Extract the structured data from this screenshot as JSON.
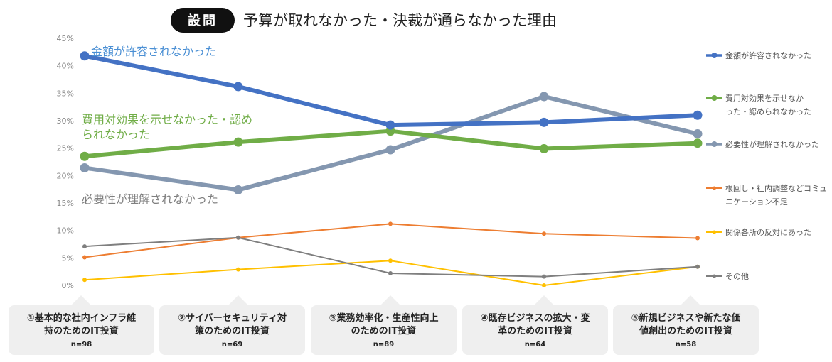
{
  "header": {
    "badge": "設問",
    "title": "予算が取れなかった・決裁が通らなかった理由"
  },
  "colors": {
    "series": [
      "#4472c4",
      "#70ad47",
      "#8497b0",
      "#ed7d31",
      "#ffc000",
      "#7f7f7f"
    ],
    "label_text": [
      "#4a8fd4",
      "#70ad47",
      "#7f7f7f"
    ],
    "badge_bg": "#111111",
    "category_box": "#efefef",
    "axis_text": "#888888",
    "grid": "#e6e6e6"
  },
  "chart_data": {
    "type": "line",
    "categories": [
      {
        "lines": [
          "①基本的な社内インフラ維",
          "持のためのIT投資"
        ],
        "n": "n=98"
      },
      {
        "lines": [
          "②サイバーセキュリティ対",
          "策のためのIT投資"
        ],
        "n": "n=69"
      },
      {
        "lines": [
          "③業務効率化・生産性向上",
          "のためのIT投資"
        ],
        "n": "n=89"
      },
      {
        "lines": [
          "④既存ビジネスの拡大・変",
          "革のためのIT投資"
        ],
        "n": "n=64"
      },
      {
        "lines": [
          "⑤新規ビジネスや新たな価",
          "値創出のためのIT投資"
        ],
        "n": "n=58"
      }
    ],
    "y_ticks": [
      "0%",
      "5%",
      "10%",
      "15%",
      "20%",
      "25%",
      "30%",
      "35%",
      "40%",
      "45%"
    ],
    "ylim": [
      0,
      45
    ],
    "grid": false,
    "legend_position": "right",
    "series": [
      {
        "name": "金額が許容されなかった",
        "legend_lines": [
          "金額が許容されなかった"
        ],
        "values": [
          41.8,
          36.2,
          29.2,
          29.7,
          31.0
        ],
        "thick": true,
        "callout": [
          "金額が許容されなかった"
        ]
      },
      {
        "name": "費用対効果を示せなかった・認められなかった",
        "legend_lines": [
          "費用対効果を示せなか",
          "った・認められなかった"
        ],
        "values": [
          23.5,
          26.1,
          28.1,
          24.9,
          25.9
        ],
        "thick": true,
        "callout": [
          "費用対効果を示せなかった・認め",
          "られなかった"
        ]
      },
      {
        "name": "必要性が理解されなかった",
        "legend_lines": [
          "必要性が理解されなかった"
        ],
        "values": [
          21.4,
          17.4,
          24.7,
          34.4,
          27.6
        ],
        "thick": true,
        "callout": [
          "必要性が理解されなかった"
        ]
      },
      {
        "name": "根回し・社内調整などコミュニケーション不足",
        "legend_lines": [
          "根回し・社内調整などコミュ",
          "ニケーション不足"
        ],
        "values": [
          5.1,
          8.7,
          11.2,
          9.4,
          8.6
        ],
        "thick": false
      },
      {
        "name": "関係各所の反対にあった",
        "legend_lines": [
          "関係各所の反対にあった"
        ],
        "values": [
          1.0,
          2.9,
          4.5,
          0.0,
          3.4
        ],
        "thick": false
      },
      {
        "name": "その他",
        "legend_lines": [
          "その他"
        ],
        "values": [
          7.1,
          8.7,
          2.2,
          1.6,
          3.4
        ],
        "thick": false
      }
    ]
  }
}
